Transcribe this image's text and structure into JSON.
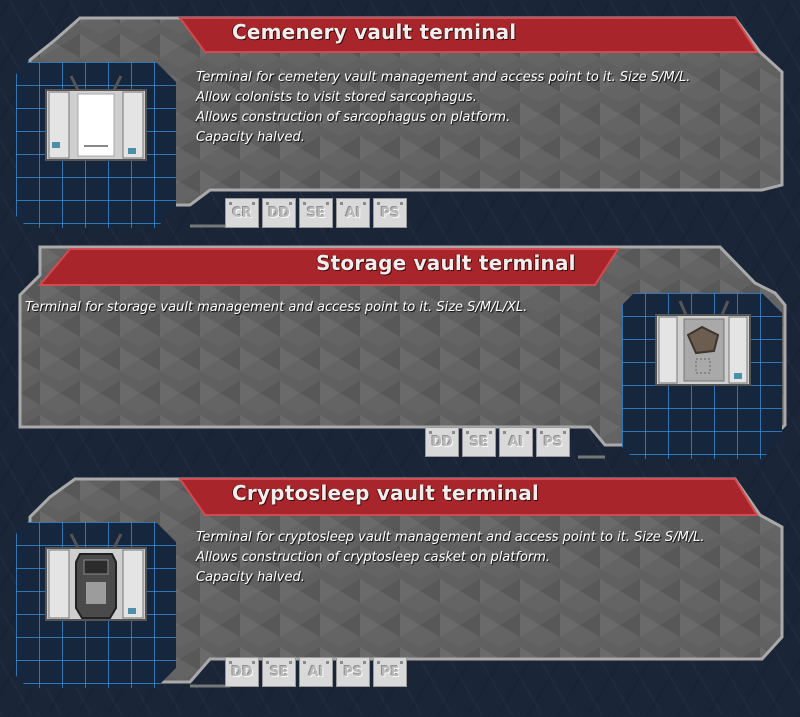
{
  "panels": [
    {
      "title": "Cemenery vault terminal",
      "description": [
        "Terminal for cemetery vault management and access point to it. Size S/M/L.",
        "Allow colonists to visit stored sarcophagus.",
        "Allows construction of sarcophagus on platform.",
        "Capacity halved."
      ],
      "tags": [
        "CR",
        "DD",
        "SE",
        "AI",
        "PS"
      ],
      "icon": "sarcophagus-terminal-icon"
    },
    {
      "title": "Storage vault terminal",
      "description": [
        "Terminal for storage vault management and access point to it. Size S/M/L/XL."
      ],
      "tags": [
        "DD",
        "SE",
        "AI",
        "PS"
      ],
      "icon": "storage-terminal-icon"
    },
    {
      "title": "Cryptosleep vault terminal",
      "description": [
        "Terminal for cryptosleep vault management and access point to it. Size S/M/L.",
        "Allows construction of cryptosleep casket on platform.",
        "Capacity halved."
      ],
      "tags": [
        "DD",
        "SE",
        "AI",
        "PS",
        "PE"
      ],
      "icon": "cryptosleep-terminal-icon"
    }
  ],
  "colors": {
    "background": "#1a2537",
    "panel_fill": "#5f5f5f",
    "panel_border": "#a9a9a9",
    "title_red": "#a8262b",
    "icon_grid_blue": "#3a8fd8"
  }
}
